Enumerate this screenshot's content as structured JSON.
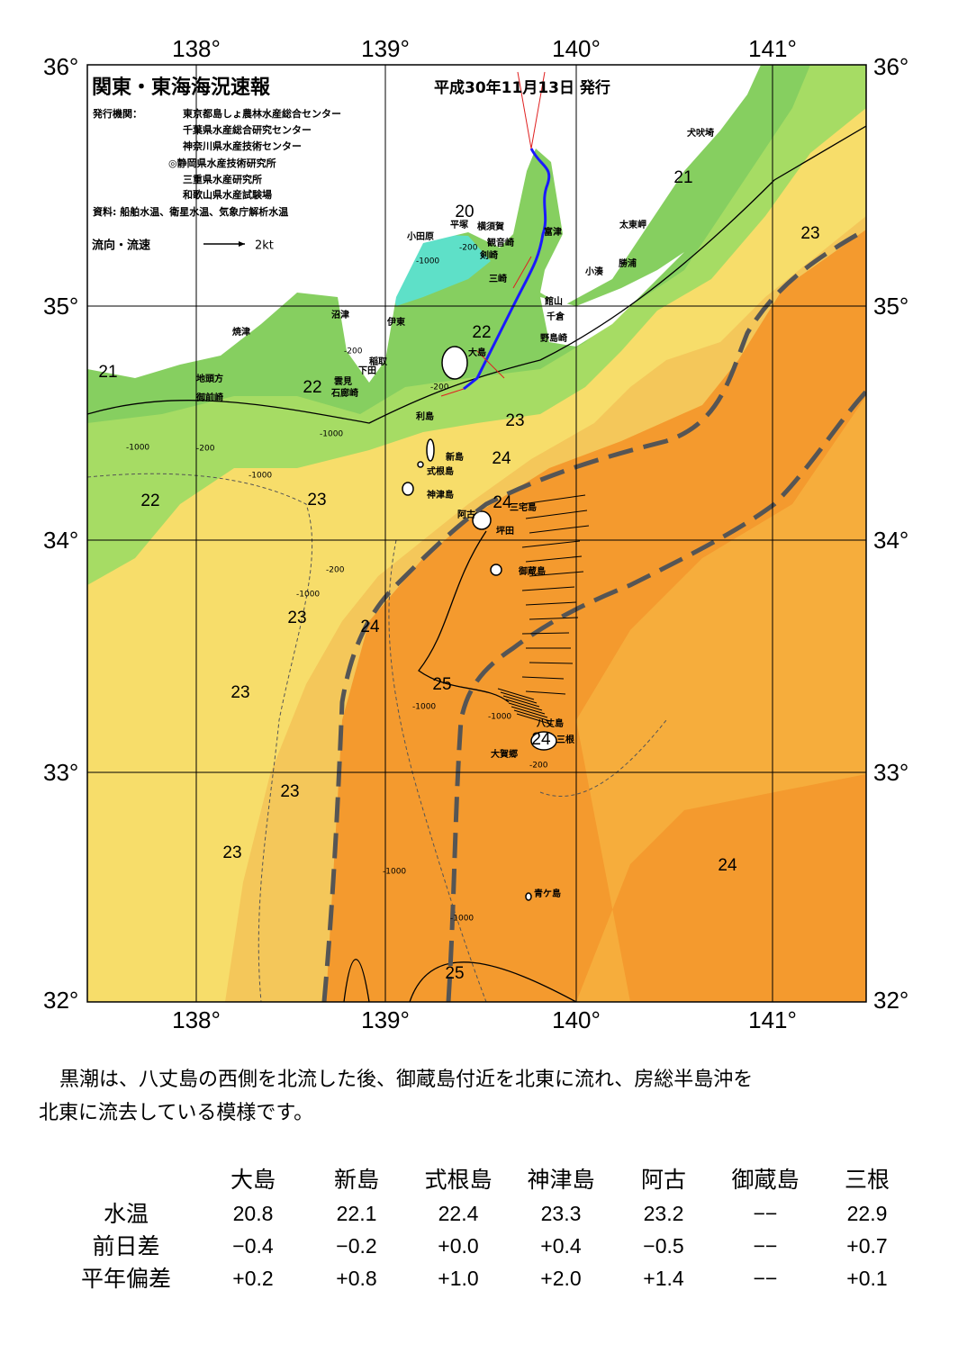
{
  "map": {
    "title": "関東・東海海況速報",
    "issued": "平成30年11月13日 発行",
    "publisher_label": "発行機関：",
    "publishers": [
      "東京都島しょ農林水産総合センター",
      "千葉県水産総合研究センター",
      "神奈川県水産技術センター",
      "◎静岡県水産技術研究所",
      "三重県水産研究所",
      "和歌山県水産試験場"
    ],
    "source": "資料: 船舶水温、衛星水温、気象庁解析水温",
    "legend_label": "流向・流速",
    "legend_scale": "2kt",
    "lon_labels": [
      "138°",
      "139°",
      "140°",
      "141°"
    ],
    "lat_labels": [
      "36°",
      "35°",
      "34°",
      "33°",
      "32°"
    ],
    "places": [
      "小田原",
      "平塚",
      "横須賀",
      "観音崎",
      "剣崎",
      "三崎",
      "富津",
      "館山",
      "千倉",
      "野島崎",
      "小湊",
      "勝浦",
      "太東岬",
      "犬吠埼",
      "沼津",
      "伊東",
      "焼津",
      "稲取",
      "下田",
      "雲見",
      "石廊崎",
      "地頭方",
      "御前崎",
      "大島",
      "利島",
      "新島",
      "式根島",
      "神津島",
      "三宅島",
      "阿古",
      "坪田",
      "御蔵島",
      "八丈島",
      "三根",
      "大賀郷",
      "青ケ島"
    ],
    "temperature_labels": [
      "20",
      "21",
      "23",
      "21",
      "22",
      "22",
      "23",
      "24",
      "24",
      "22",
      "23",
      "23",
      "24",
      "25",
      "23",
      "24",
      "23",
      "23",
      "24",
      "25"
    ],
    "depth_labels": [
      "-200",
      "-1000",
      "-200",
      "-1000",
      "-200",
      "-1000",
      "-1000",
      "-200",
      "-1000",
      "-1000",
      "-1000",
      "-1000",
      "-1000",
      "-200",
      "-200"
    ]
  },
  "description": [
    "黒潮は、八丈島の西側を北流した後、御蔵島付近を北東に流れ、房総半島沖を",
    "北東に流去している模様です。"
  ],
  "table": {
    "columns": [
      "大島",
      "新島",
      "式根島",
      "神津島",
      "阿古",
      "御蔵島",
      "三根"
    ],
    "rows": [
      {
        "label": "水温",
        "cells": [
          "20.8",
          "22.1",
          "22.4",
          "23.3",
          "23.2",
          "−−",
          "22.9"
        ]
      },
      {
        "label": "前日差",
        "cells": [
          "−0.4",
          "−0.2",
          "+0.0",
          "+0.4",
          "−0.5",
          "−−",
          "+0.7"
        ]
      },
      {
        "label": "平年偏差",
        "cells": [
          "+0.2",
          "+0.8",
          "+1.0",
          "+2.0",
          "+1.4",
          "−−",
          "+0.1"
        ]
      }
    ]
  }
}
